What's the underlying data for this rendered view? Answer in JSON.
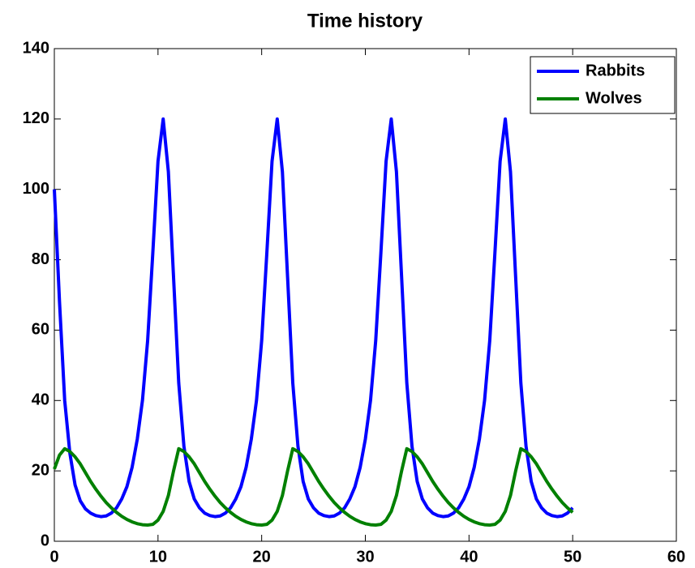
{
  "chart_data": {
    "type": "line",
    "title": "Time history",
    "x": [
      0,
      0.5,
      1,
      1.5,
      2,
      2.5,
      3,
      3.5,
      4,
      4.5,
      5,
      5.5,
      6,
      6.5,
      7,
      7.5,
      8,
      8.5,
      9,
      9.5,
      10,
      10.5,
      11,
      11.5,
      12,
      12.5,
      13,
      13.5,
      14,
      14.5,
      15,
      15.5,
      16,
      16.5,
      17,
      17.5,
      18,
      18.5,
      19,
      19.5,
      20,
      20.5,
      21,
      21.5,
      22,
      22.5,
      23,
      23.5,
      24,
      24.5,
      25,
      25.5,
      26,
      26.5,
      27,
      27.5,
      28,
      28.5,
      29,
      29.5,
      30,
      30.5,
      31,
      31.5,
      32,
      32.5,
      33,
      33.5,
      34,
      34.5,
      35,
      35.5,
      36,
      36.5,
      37,
      37.5,
      38,
      38.5,
      39,
      39.5,
      40,
      40.5,
      41,
      41.5,
      42,
      42.5,
      43,
      43.5,
      44,
      44.5,
      45,
      45.5,
      46,
      46.5,
      47,
      47.5,
      48,
      48.5,
      49,
      49.5,
      50
    ],
    "series": [
      {
        "name": "Rabbits",
        "color": "#0000ff",
        "values": [
          100,
          68,
          40,
          25,
          16,
          11.5,
          9.2,
          8,
          7.3,
          7,
          7.2,
          8,
          9.5,
          12,
          15.5,
          21,
          29,
          40,
          57,
          82,
          108,
          120,
          105,
          75,
          45,
          27,
          17,
          12,
          9.5,
          8,
          7.3,
          7,
          7.2,
          8,
          9.5,
          12,
          15.5,
          21,
          29,
          40,
          57,
          82,
          108,
          120,
          105,
          75,
          45,
          27,
          17,
          12,
          9.5,
          8,
          7.3,
          7,
          7.2,
          8,
          9.5,
          12,
          15.5,
          21,
          29,
          40,
          57,
          82,
          108,
          120,
          105,
          75,
          45,
          27,
          17,
          12,
          9.5,
          8,
          7.3,
          7,
          7.2,
          8,
          9.5,
          12,
          15.5,
          21,
          29,
          40,
          57,
          82,
          108,
          120,
          105,
          75,
          45,
          27,
          17,
          12,
          9.5,
          8,
          7.3,
          7,
          7.2,
          8,
          9.5
        ]
      },
      {
        "name": "Wolves",
        "color": "#008000",
        "values": [
          20.5,
          24.5,
          26.3,
          25.5,
          24,
          22,
          19.5,
          17,
          14.8,
          12.8,
          11,
          9.5,
          8.2,
          7.1,
          6.2,
          5.5,
          5,
          4.7,
          4.6,
          4.8,
          6,
          8.5,
          13,
          20,
          26.3,
          25.5,
          24,
          22,
          19.5,
          17,
          14.8,
          12.8,
          11,
          9.5,
          8.2,
          7.1,
          6.2,
          5.5,
          5,
          4.7,
          4.6,
          4.8,
          6,
          8.5,
          13,
          20,
          26.3,
          25.5,
          24,
          22,
          19.5,
          17,
          14.8,
          12.8,
          11,
          9.5,
          8.2,
          7.1,
          6.2,
          5.5,
          5,
          4.7,
          4.6,
          4.8,
          6,
          8.5,
          13,
          20,
          26.3,
          25.5,
          24,
          22,
          19.5,
          17,
          14.8,
          12.8,
          11,
          9.5,
          8.2,
          7.1,
          6.2,
          5.5,
          5,
          4.7,
          4.6,
          4.8,
          6,
          8.5,
          13,
          20,
          26.3,
          25.5,
          24,
          22,
          19.5,
          17,
          14.8,
          12.8,
          11,
          9.5,
          8.2
        ]
      }
    ],
    "xlim": [
      0,
      60
    ],
    "xticks": [
      0,
      10,
      20,
      30,
      40,
      50,
      60
    ],
    "ylim": [
      0,
      140
    ],
    "yticks": [
      0,
      20,
      40,
      60,
      80,
      100,
      120,
      140
    ],
    "grid": false,
    "legend": "upper right"
  }
}
